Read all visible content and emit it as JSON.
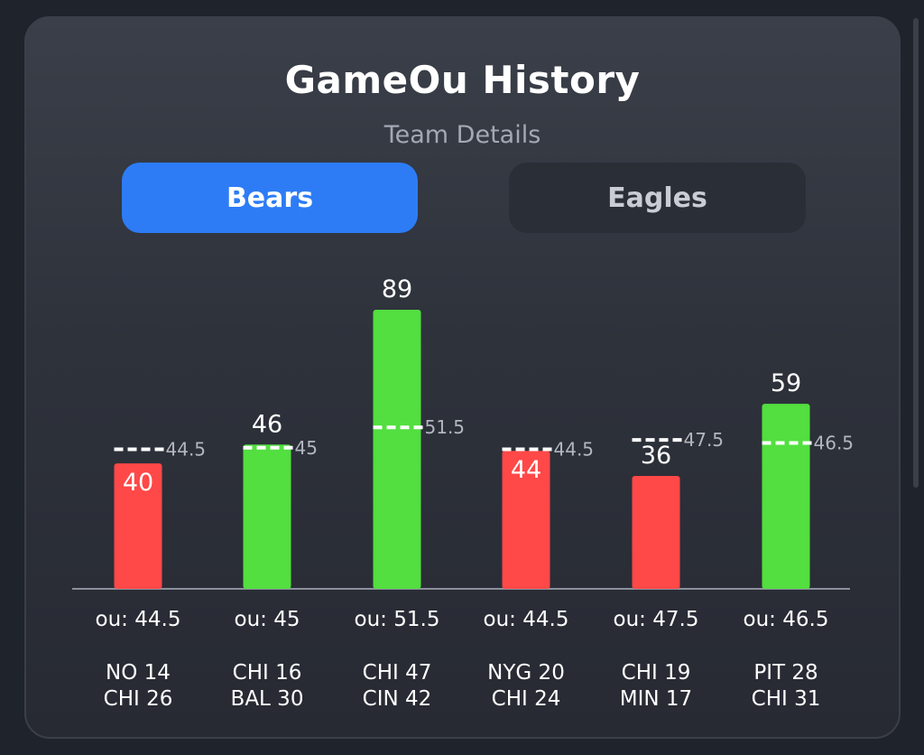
{
  "header": {
    "title": "GameOu History",
    "subtitle": "Team Details"
  },
  "tabs": [
    {
      "label": "Bears",
      "active": true
    },
    {
      "label": "Eagles",
      "active": false
    }
  ],
  "colors": {
    "over": "#52df3f",
    "under": "#ff4848",
    "active_tab": "#2d7cf6",
    "line": "#ffffff"
  },
  "chart_data": {
    "type": "bar",
    "title": "",
    "xlabel": "",
    "ylabel": "",
    "ylim": [
      0,
      89
    ],
    "grid": false,
    "legend": "none",
    "categories": [
      "NO 14 CHI 26",
      "CHI 16 BAL 30",
      "CHI 47 CIN 42",
      "NYG 20 CHI 24",
      "CHI 19 MIN 17",
      "PIT 28 CHI 31"
    ],
    "games": [
      {
        "total": 40,
        "ou": 44.5,
        "ou_label": "ou: 44.5",
        "line_label": "44.5",
        "teams": [
          "NO 14",
          "CHI 26"
        ],
        "result": "under"
      },
      {
        "total": 46,
        "ou": 45,
        "ou_label": "ou: 45",
        "line_label": "45",
        "teams": [
          "CHI 16",
          "BAL 30"
        ],
        "result": "over"
      },
      {
        "total": 89,
        "ou": 51.5,
        "ou_label": "ou: 51.5",
        "line_label": "51.5",
        "teams": [
          "CHI 47",
          "CIN 42"
        ],
        "result": "over"
      },
      {
        "total": 44,
        "ou": 44.5,
        "ou_label": "ou: 44.5",
        "line_label": "44.5",
        "teams": [
          "NYG 20",
          "CHI 24"
        ],
        "result": "under"
      },
      {
        "total": 36,
        "ou": 47.5,
        "ou_label": "ou: 47.5",
        "line_label": "47.5",
        "teams": [
          "CHI 19",
          "MIN 17"
        ],
        "result": "under"
      },
      {
        "total": 59,
        "ou": 46.5,
        "ou_label": "ou: 46.5",
        "line_label": "46.5",
        "teams": [
          "PIT 28",
          "CHI 31"
        ],
        "result": "over"
      }
    ]
  }
}
